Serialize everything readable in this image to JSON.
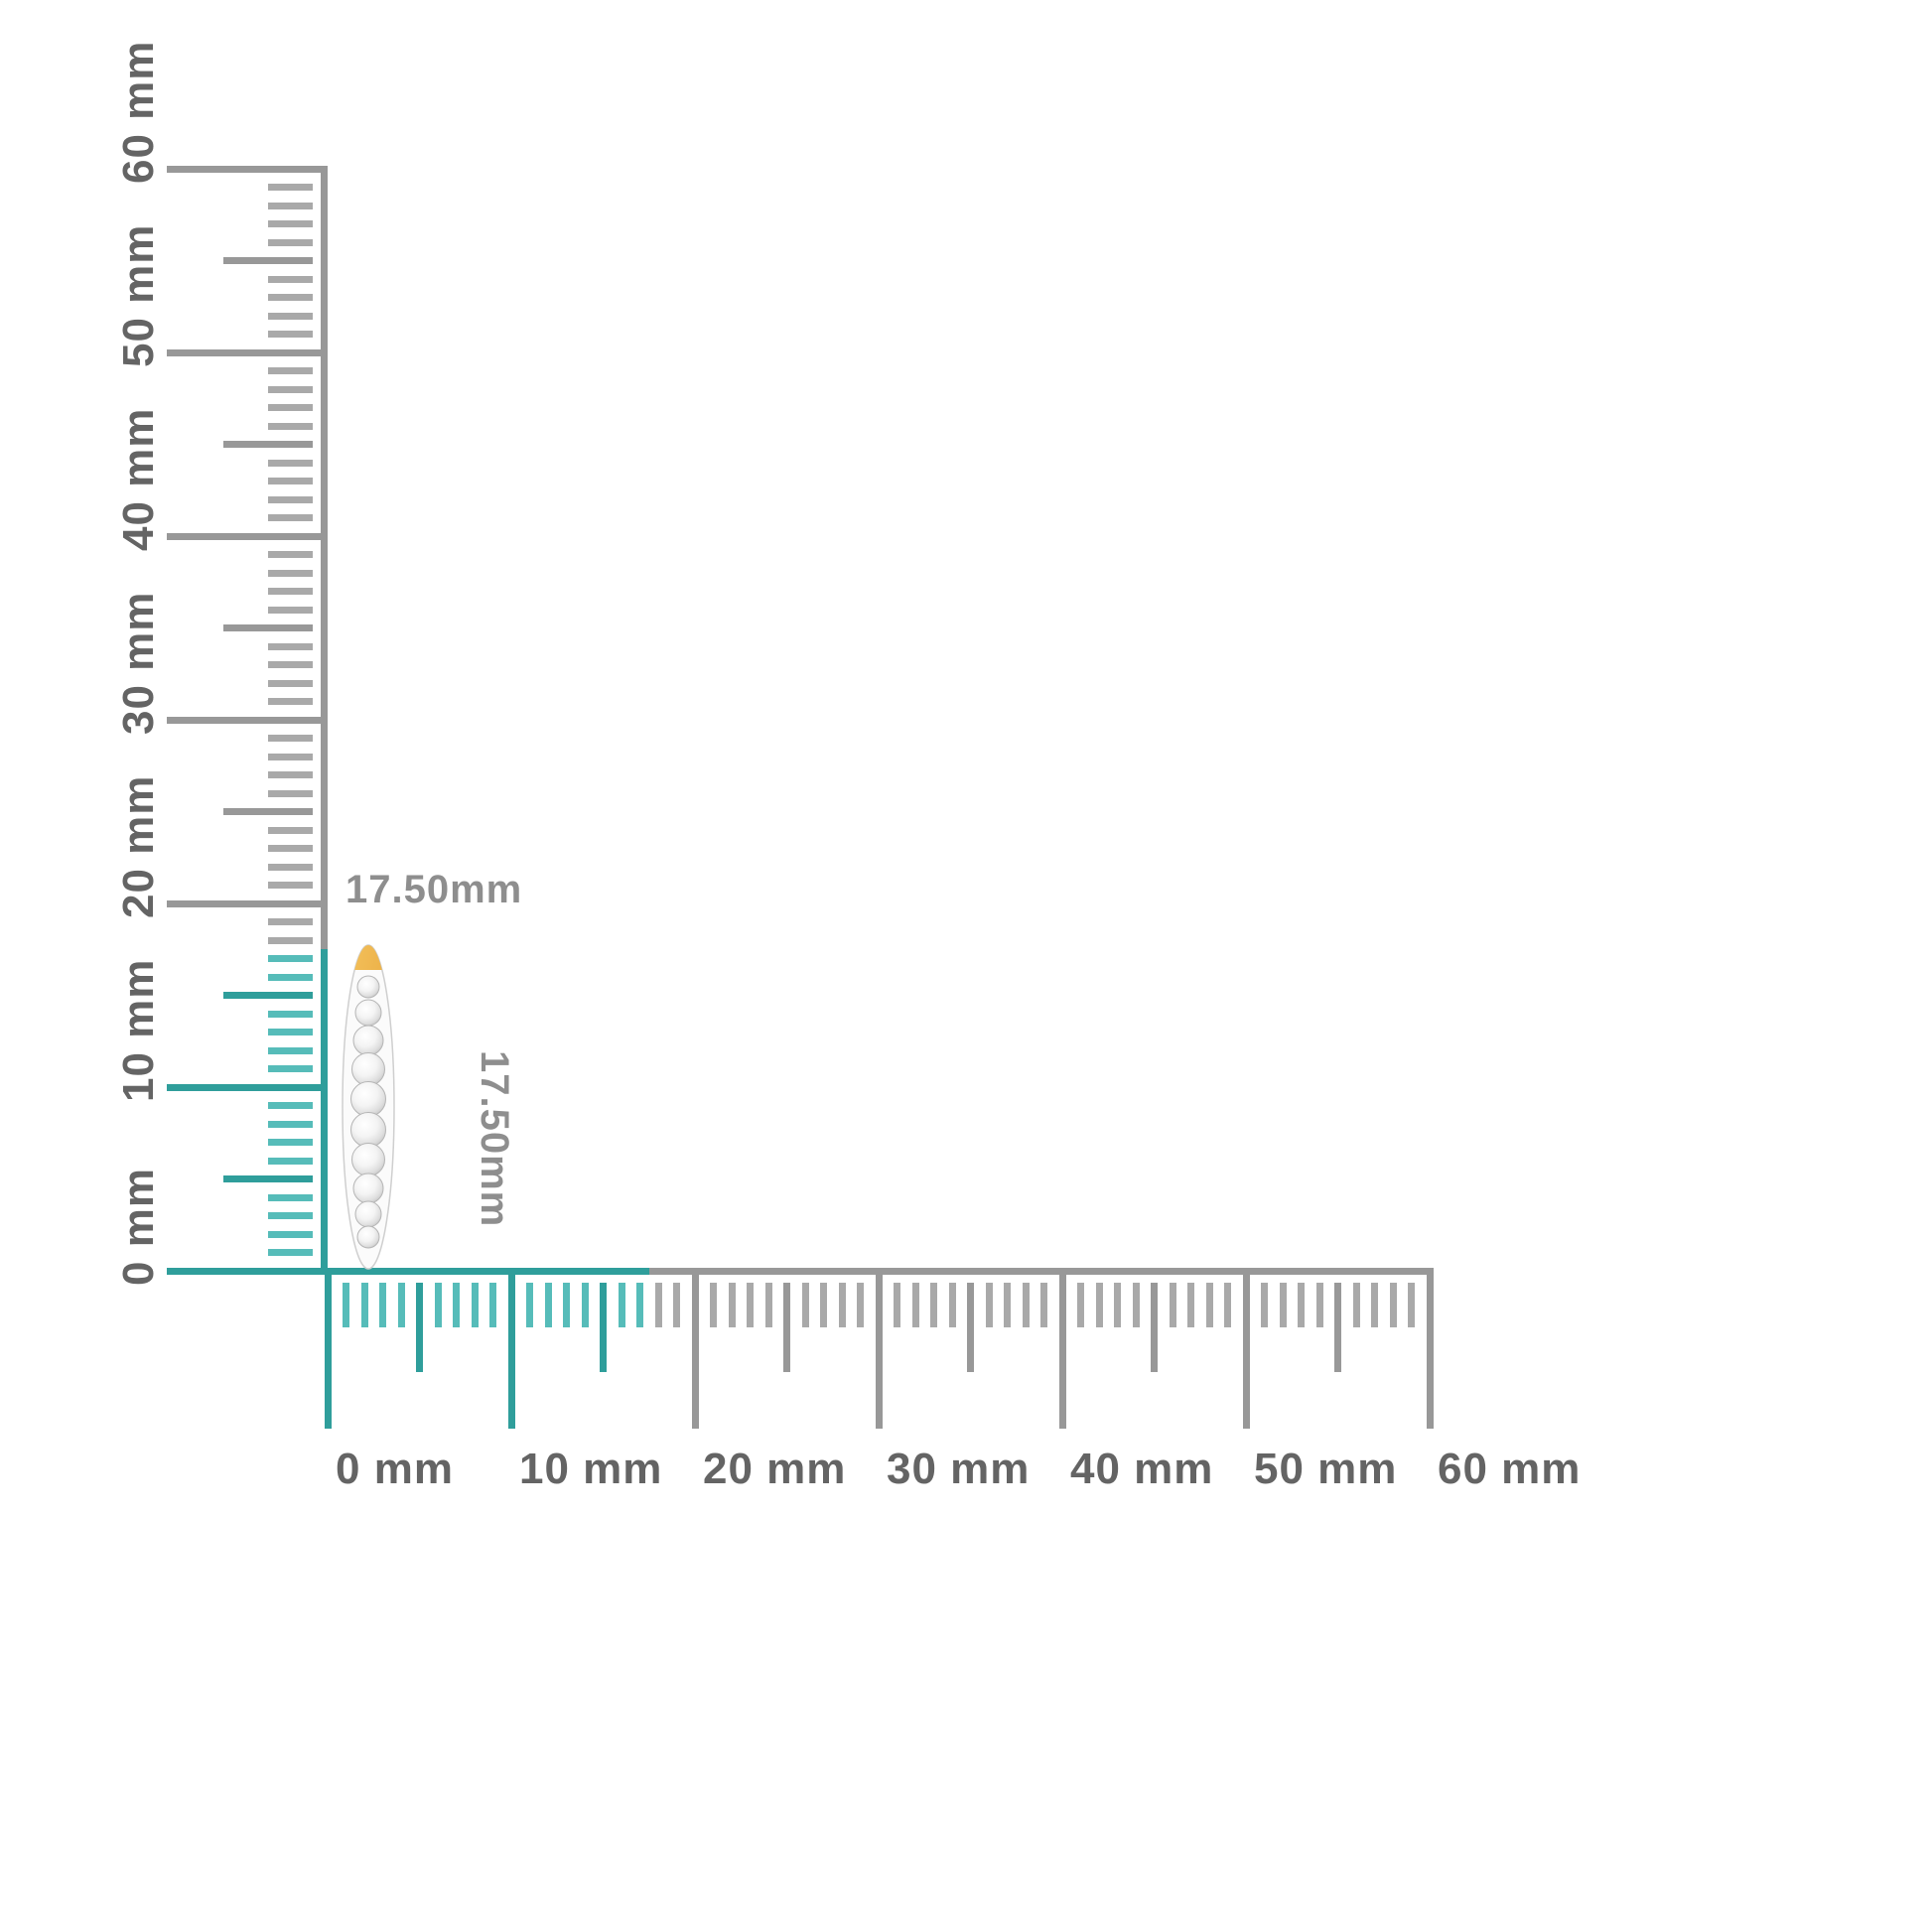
{
  "measurement": {
    "width_label": "17.50mm",
    "height_label": "17.50mm"
  },
  "ruler": {
    "unit": "mm",
    "min_mm": 0,
    "max_mm": 60,
    "minor_step_mm": 1,
    "medium_step_mm": 5,
    "major_step_mm": 10,
    "highlighted_range_mm": 17.5,
    "labels": [
      "0 mm",
      "10 mm",
      "20 mm",
      "30 mm",
      "40 mm",
      "50 mm",
      "60 mm"
    ],
    "colors": {
      "tick_gray": "#a9a9a9",
      "tick_gray_strong": "#989898",
      "tick_teal": "#56bcb9",
      "tick_teal_strong": "#2f9e9b",
      "label_color": "#646464",
      "measurement_label_color": "#8e8e8e"
    }
  },
  "product": {
    "name": "diamond-hoop-earring-side-view",
    "gold_top_color": "#f5c35e",
    "gold_bottom_color": "#e09a2d",
    "stone_outline_color": "#b5b5b5",
    "body_outline_color": "#cfcfcf"
  }
}
